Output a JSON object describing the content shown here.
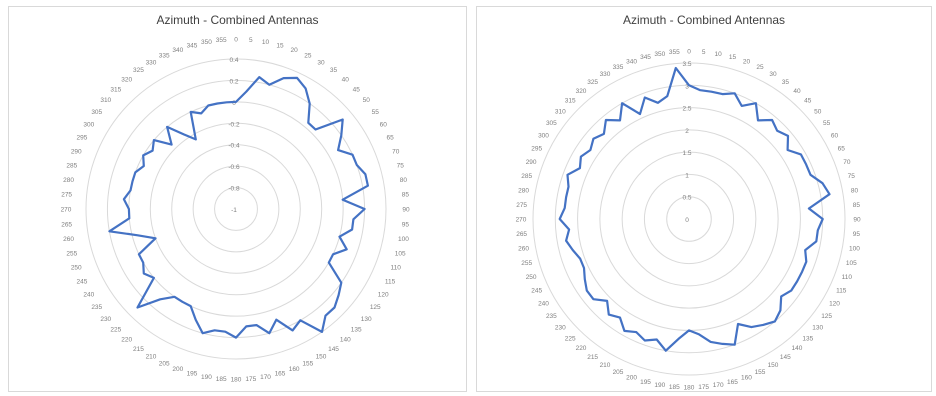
{
  "chart_data": [
    {
      "type": "radar",
      "title": "Azimuth - Combined Antennas",
      "categories": [
        "0",
        "5",
        "10",
        "15",
        "20",
        "25",
        "30",
        "35",
        "40",
        "45",
        "50",
        "55",
        "60",
        "65",
        "70",
        "75",
        "80",
        "85",
        "90",
        "95",
        "100",
        "105",
        "110",
        "115",
        "120",
        "125",
        "130",
        "135",
        "140",
        "145",
        "150",
        "155",
        "160",
        "165",
        "170",
        "175",
        "180",
        "185",
        "190",
        "195",
        "200",
        "205",
        "210",
        "215",
        "220",
        "225",
        "230",
        "235",
        "240",
        "245",
        "250",
        "255",
        "260",
        "265",
        "270",
        "275",
        "280",
        "285",
        "290",
        "295",
        "300",
        "305",
        "310",
        "315",
        "320",
        "325",
        "330",
        "335",
        "340",
        "345",
        "350",
        "355"
      ],
      "radial_ticks": [
        "-1",
        "-0.8",
        "-0.6",
        "-0.4",
        "-0.2",
        "0",
        "0.2",
        "0.4"
      ],
      "rlim": [
        -1,
        0.4
      ],
      "grid": true,
      "color": "#4472c4",
      "values": [
        0.0,
        0.1,
        0.25,
        0.2,
        0.3,
        0.35,
        0.3,
        0.2,
        0.05,
        0.05,
        0.3,
        0.2,
        0.1,
        0.2,
        0.2,
        0.25,
        0.25,
        0.0,
        0.2,
        0.1,
        0.1,
        0.0,
        0.1,
        0.0,
        0.0,
        0.2,
        0.25,
        0.3,
        0.3,
        0.4,
        0.2,
        0.25,
        0.1,
        0.2,
        0.1,
        0.1,
        0.2,
        0.15,
        0.15,
        0.2,
        0.1,
        0.0,
        0.0,
        0.0,
        0.1,
        0.3,
        0.0,
        0.05,
        0.0,
        0.0,
        -0.2,
        -0.05,
        0.2,
        0.0,
        0.0,
        0.05,
        0.0,
        0.0,
        0.0,
        -0.05,
        0.0,
        -0.05,
        0.0,
        -0.15,
        0.0,
        -0.15,
        -0.25,
        0.0,
        -0.05,
        0.0,
        0.0,
        0.0
      ]
    },
    {
      "type": "radar",
      "title": "Azimuth - Combined Antennas",
      "categories": [
        "0",
        "5",
        "10",
        "15",
        "20",
        "25",
        "30",
        "35",
        "40",
        "45",
        "50",
        "55",
        "60",
        "65",
        "70",
        "75",
        "80",
        "85",
        "90",
        "95",
        "100",
        "105",
        "110",
        "115",
        "120",
        "125",
        "130",
        "135",
        "140",
        "145",
        "150",
        "155",
        "160",
        "165",
        "170",
        "175",
        "180",
        "185",
        "190",
        "195",
        "200",
        "205",
        "210",
        "215",
        "220",
        "225",
        "230",
        "235",
        "240",
        "245",
        "250",
        "255",
        "260",
        "265",
        "270",
        "275",
        "280",
        "285",
        "290",
        "295",
        "300",
        "305",
        "310",
        "315",
        "320",
        "325",
        "330",
        "335",
        "340",
        "345",
        "350",
        "355"
      ],
      "radial_ticks": [
        "0",
        "0.5",
        "1",
        "1.5",
        "2",
        "2.5",
        "3",
        "3.5"
      ],
      "rlim": [
        0,
        3.5
      ],
      "grid": true,
      "color": "#4472c4",
      "values": [
        3.0,
        2.9,
        2.9,
        2.9,
        3.0,
        2.8,
        3.0,
        2.7,
        2.9,
        2.8,
        2.9,
        2.7,
        2.9,
        2.9,
        2.9,
        3.1,
        3.2,
        2.7,
        3.0,
        2.9,
        2.9,
        2.7,
        2.8,
        2.8,
        2.8,
        2.8,
        2.7,
        2.9,
        3.0,
        2.9,
        2.8,
        2.6,
        3.0,
        2.9,
        2.8,
        2.6,
        2.5,
        2.7,
        3.0,
        2.8,
        2.9,
        2.8,
        2.9,
        2.7,
        2.8,
        2.6,
        2.8,
        2.8,
        2.7,
        2.6,
        2.6,
        2.7,
        2.8,
        2.7,
        2.9,
        2.8,
        2.8,
        2.8,
        2.9,
        2.7,
        2.8,
        2.7,
        2.8,
        2.7,
        2.9,
        2.7,
        3.0,
        2.6,
        2.9,
        2.7,
        2.8,
        3.4
      ]
    }
  ]
}
